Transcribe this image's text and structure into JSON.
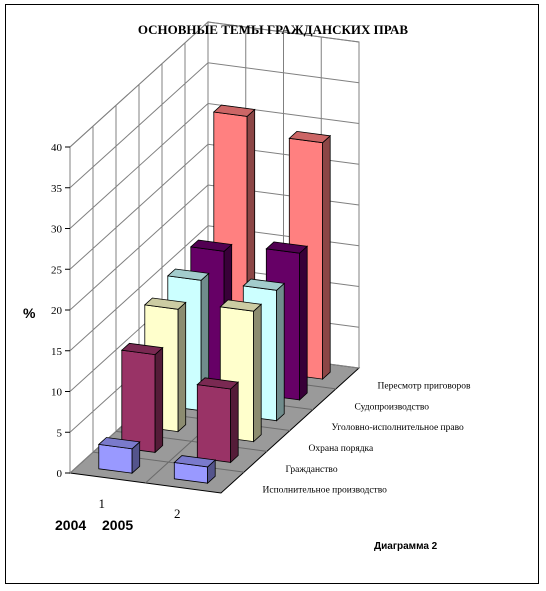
{
  "chart_data": {
    "type": "bar",
    "title": "ОСНОВНЫЕ ТЕМЫ ГРАЖДАНСКИХ ПРАВ",
    "ylabel": "%",
    "ylim": [
      0,
      40
    ],
    "yticks": [
      "0",
      "5",
      "10",
      "15",
      "20",
      "25",
      "30",
      "35",
      "40"
    ],
    "x_tick_labels": [
      "1",
      "2"
    ],
    "year_labels": [
      "2004",
      "2005"
    ],
    "caption": "Диаграмма 2",
    "grid": true,
    "series": [
      {
        "name": "Исполнительное производство",
        "values": [
          3,
          2
        ],
        "color": "#9999FF"
      },
      {
        "name": "Гражданство",
        "values": [
          12,
          9
        ],
        "color": "#993366"
      },
      {
        "name": "Охрана порядка",
        "values": [
          15,
          16
        ],
        "color": "#FFFFCC"
      },
      {
        "name": "Уголовно-исполнительное право",
        "values": [
          16,
          16
        ],
        "color": "#CCFFFF"
      },
      {
        "name": "Судопроизводство",
        "values": [
          17,
          18
        ],
        "color": "#660066"
      },
      {
        "name": "Пересмотр приговоров",
        "values": [
          31,
          29
        ],
        "color": "#FF8080"
      }
    ]
  }
}
